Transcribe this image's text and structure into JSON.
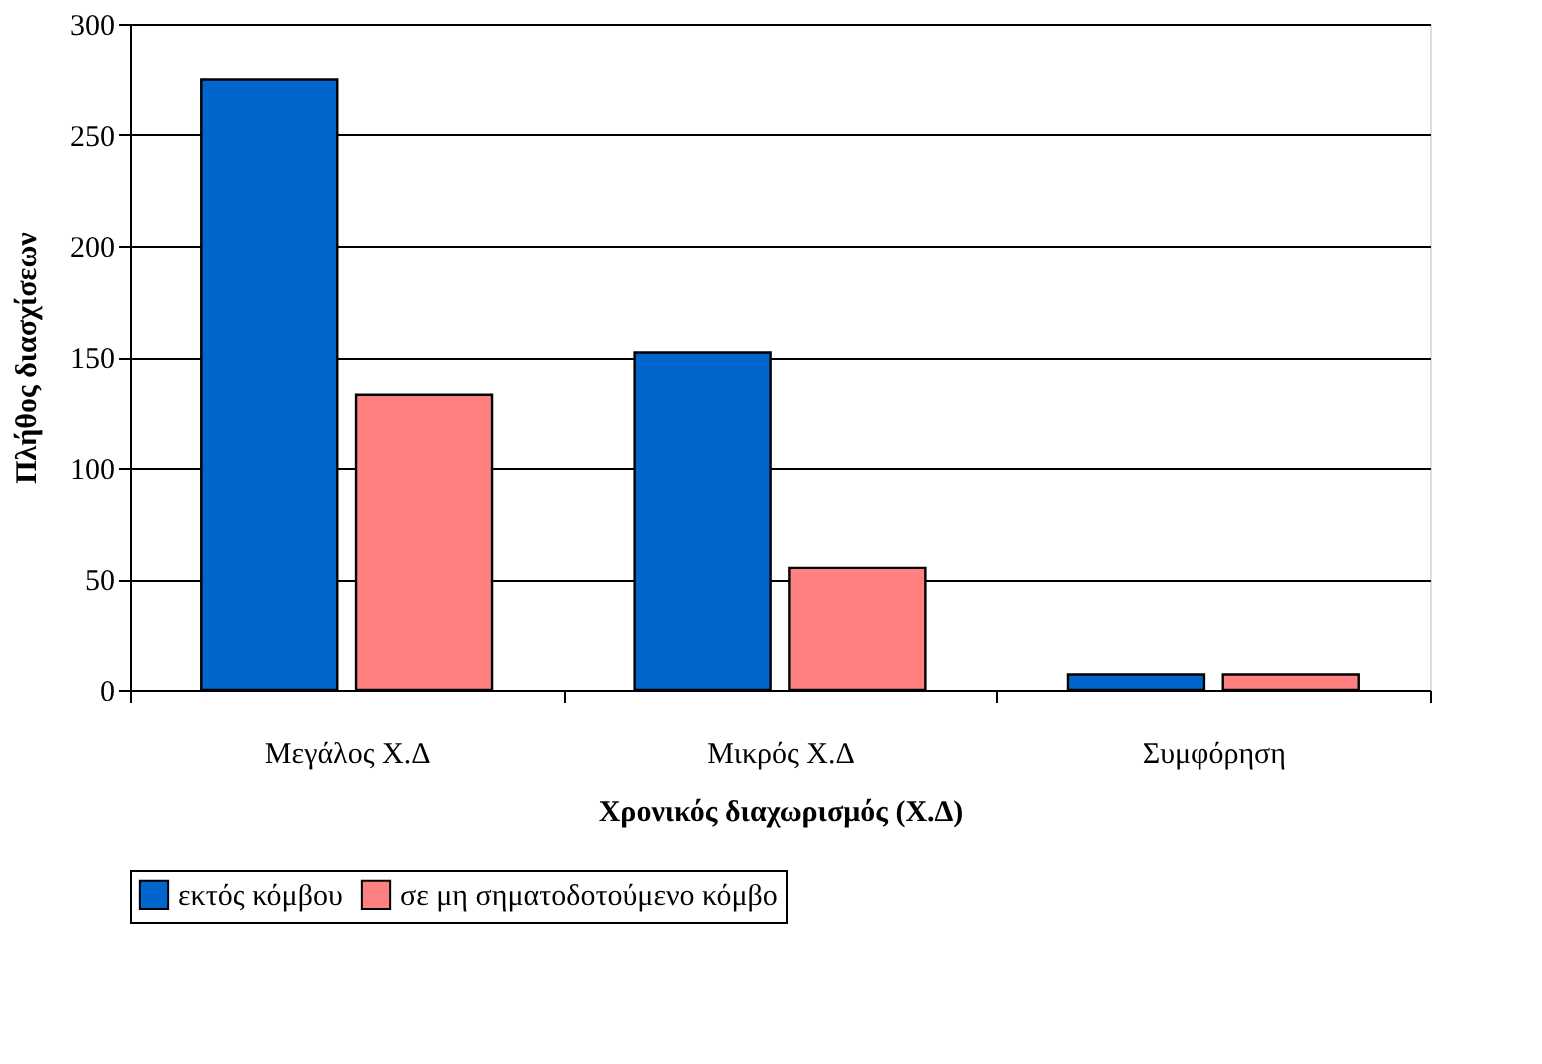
{
  "chart_data": {
    "type": "bar",
    "xlabel": "Χρονικός διαχωρισμός (Χ.Δ)",
    "ylabel": "Πλήθος διασχίσεων",
    "categories": [
      "Μεγάλος Χ.Δ",
      "Μικρός Χ.Δ",
      "Συμφόρηση"
    ],
    "series": [
      {
        "name": "εκτός κόμβου",
        "color": "#0066cc",
        "values": [
          275,
          152,
          7
        ]
      },
      {
        "name": "σε μη σηματοδοτούμενο κόμβο",
        "color": "#ff8080",
        "values": [
          133,
          55,
          7
        ]
      }
    ],
    "ylim": [
      0,
      300
    ],
    "yticks": [
      0,
      50,
      100,
      150,
      200,
      250,
      300
    ],
    "grid": "y",
    "legend": "bottom"
  }
}
